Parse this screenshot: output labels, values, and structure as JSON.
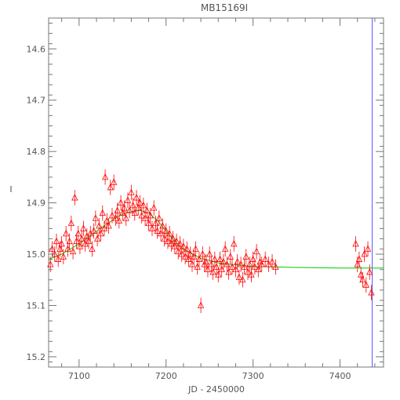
{
  "chart_data": {
    "type": "scatter",
    "title": "MB15169I",
    "xlabel": "JD - 2450000",
    "ylabel": "I",
    "xlim": [
      7065,
      7450
    ],
    "ylim": [
      15.22,
      14.54
    ],
    "y_inverted": true,
    "x_ticks": [
      7100,
      7200,
      7300,
      7400
    ],
    "x_tick_labels": [
      "7100",
      "7200",
      "7300",
      "7400"
    ],
    "y_ticks": [
      14.6,
      14.7,
      14.8,
      14.9,
      15.0,
      15.1,
      15.2
    ],
    "y_tick_labels": [
      "14.6",
      "14.7",
      "14.8",
      "14.9",
      "15.0",
      "15.1",
      "15.2"
    ],
    "grid": false,
    "marker": "triangle",
    "colors": {
      "points": "#ff0000",
      "model": "#00cc00",
      "vline": "#5555ff",
      "axes": "#777777"
    },
    "vertical_line_x": 7437,
    "model": {
      "name": "",
      "x": [
        7065,
        7080,
        7100,
        7120,
        7140,
        7150,
        7160,
        7170,
        7180,
        7190,
        7200,
        7210,
        7220,
        7240,
        7260,
        7280,
        7300,
        7350,
        7400,
        7450
      ],
      "y": [
        15.01,
        15.0,
        14.98,
        14.955,
        14.932,
        14.922,
        14.917,
        14.915,
        14.92,
        14.934,
        14.955,
        14.975,
        14.99,
        15.008,
        15.017,
        15.021,
        15.024,
        15.026,
        15.027,
        15.027
      ]
    },
    "points": [
      {
        "x": 7067,
        "y": 15.02,
        "e": 0.015
      },
      {
        "x": 7069,
        "y": 14.99,
        "e": 0.015
      },
      {
        "x": 7072,
        "y": 15.0,
        "e": 0.015
      },
      {
        "x": 7074,
        "y": 14.975,
        "e": 0.015
      },
      {
        "x": 7076,
        "y": 15.01,
        "e": 0.015
      },
      {
        "x": 7078,
        "y": 14.99,
        "e": 0.015
      },
      {
        "x": 7080,
        "y": 14.98,
        "e": 0.015
      },
      {
        "x": 7082,
        "y": 15.005,
        "e": 0.015
      },
      {
        "x": 7085,
        "y": 14.96,
        "e": 0.015
      },
      {
        "x": 7087,
        "y": 14.99,
        "e": 0.015
      },
      {
        "x": 7089,
        "y": 14.975,
        "e": 0.015
      },
      {
        "x": 7091,
        "y": 14.94,
        "e": 0.015
      },
      {
        "x": 7093,
        "y": 14.995,
        "e": 0.015
      },
      {
        "x": 7095,
        "y": 14.89,
        "e": 0.015
      },
      {
        "x": 7097,
        "y": 14.975,
        "e": 0.015
      },
      {
        "x": 7099,
        "y": 14.96,
        "e": 0.015
      },
      {
        "x": 7101,
        "y": 14.985,
        "e": 0.015
      },
      {
        "x": 7103,
        "y": 14.97,
        "e": 0.015
      },
      {
        "x": 7105,
        "y": 14.95,
        "e": 0.015
      },
      {
        "x": 7107,
        "y": 14.98,
        "e": 0.015
      },
      {
        "x": 7109,
        "y": 14.965,
        "e": 0.015
      },
      {
        "x": 7111,
        "y": 14.975,
        "e": 0.015
      },
      {
        "x": 7113,
        "y": 14.96,
        "e": 0.015
      },
      {
        "x": 7115,
        "y": 14.99,
        "e": 0.015
      },
      {
        "x": 7117,
        "y": 14.955,
        "e": 0.015
      },
      {
        "x": 7119,
        "y": 14.93,
        "e": 0.015
      },
      {
        "x": 7121,
        "y": 14.97,
        "e": 0.015
      },
      {
        "x": 7123,
        "y": 14.945,
        "e": 0.015
      },
      {
        "x": 7125,
        "y": 14.96,
        "e": 0.015
      },
      {
        "x": 7127,
        "y": 14.92,
        "e": 0.015
      },
      {
        "x": 7129,
        "y": 14.95,
        "e": 0.015
      },
      {
        "x": 7130,
        "y": 14.85,
        "e": 0.015
      },
      {
        "x": 7132,
        "y": 14.935,
        "e": 0.015
      },
      {
        "x": 7134,
        "y": 14.945,
        "e": 0.015
      },
      {
        "x": 7136,
        "y": 14.87,
        "e": 0.015
      },
      {
        "x": 7138,
        "y": 14.925,
        "e": 0.015
      },
      {
        "x": 7140,
        "y": 14.86,
        "e": 0.015
      },
      {
        "x": 7142,
        "y": 14.93,
        "e": 0.015
      },
      {
        "x": 7144,
        "y": 14.915,
        "e": 0.015
      },
      {
        "x": 7146,
        "y": 14.935,
        "e": 0.015
      },
      {
        "x": 7148,
        "y": 14.9,
        "e": 0.015
      },
      {
        "x": 7150,
        "y": 14.92,
        "e": 0.015
      },
      {
        "x": 7152,
        "y": 14.91,
        "e": 0.015
      },
      {
        "x": 7154,
        "y": 14.93,
        "e": 0.015
      },
      {
        "x": 7156,
        "y": 14.895,
        "e": 0.015
      },
      {
        "x": 7158,
        "y": 14.915,
        "e": 0.015
      },
      {
        "x": 7160,
        "y": 14.88,
        "e": 0.015
      },
      {
        "x": 7162,
        "y": 14.905,
        "e": 0.015
      },
      {
        "x": 7164,
        "y": 14.92,
        "e": 0.015
      },
      {
        "x": 7166,
        "y": 14.89,
        "e": 0.015
      },
      {
        "x": 7168,
        "y": 14.91,
        "e": 0.015
      },
      {
        "x": 7170,
        "y": 14.9,
        "e": 0.015
      },
      {
        "x": 7172,
        "y": 14.925,
        "e": 0.015
      },
      {
        "x": 7174,
        "y": 14.905,
        "e": 0.015
      },
      {
        "x": 7176,
        "y": 14.93,
        "e": 0.015
      },
      {
        "x": 7178,
        "y": 14.915,
        "e": 0.015
      },
      {
        "x": 7180,
        "y": 14.94,
        "e": 0.015
      },
      {
        "x": 7182,
        "y": 14.925,
        "e": 0.015
      },
      {
        "x": 7184,
        "y": 14.95,
        "e": 0.015
      },
      {
        "x": 7186,
        "y": 14.91,
        "e": 0.015
      },
      {
        "x": 7188,
        "y": 14.94,
        "e": 0.015
      },
      {
        "x": 7190,
        "y": 14.955,
        "e": 0.015
      },
      {
        "x": 7192,
        "y": 14.93,
        "e": 0.015
      },
      {
        "x": 7194,
        "y": 14.96,
        "e": 0.015
      },
      {
        "x": 7196,
        "y": 14.945,
        "e": 0.015
      },
      {
        "x": 7198,
        "y": 14.97,
        "e": 0.015
      },
      {
        "x": 7200,
        "y": 14.955,
        "e": 0.015
      },
      {
        "x": 7202,
        "y": 14.975,
        "e": 0.015
      },
      {
        "x": 7204,
        "y": 14.96,
        "e": 0.015
      },
      {
        "x": 7206,
        "y": 14.98,
        "e": 0.015
      },
      {
        "x": 7208,
        "y": 14.97,
        "e": 0.015
      },
      {
        "x": 7210,
        "y": 14.985,
        "e": 0.015
      },
      {
        "x": 7212,
        "y": 14.975,
        "e": 0.015
      },
      {
        "x": 7214,
        "y": 14.995,
        "e": 0.015
      },
      {
        "x": 7216,
        "y": 14.98,
        "e": 0.015
      },
      {
        "x": 7218,
        "y": 15.0,
        "e": 0.015
      },
      {
        "x": 7220,
        "y": 14.985,
        "e": 0.015
      },
      {
        "x": 7222,
        "y": 15.005,
        "e": 0.015
      },
      {
        "x": 7224,
        "y": 14.99,
        "e": 0.015
      },
      {
        "x": 7226,
        "y": 15.01,
        "e": 0.015
      },
      {
        "x": 7228,
        "y": 15.0,
        "e": 0.015
      },
      {
        "x": 7230,
        "y": 15.02,
        "e": 0.015
      },
      {
        "x": 7232,
        "y": 15.005,
        "e": 0.015
      },
      {
        "x": 7234,
        "y": 14.99,
        "e": 0.015
      },
      {
        "x": 7236,
        "y": 15.025,
        "e": 0.015
      },
      {
        "x": 7238,
        "y": 15.01,
        "e": 0.015
      },
      {
        "x": 7240,
        "y": 15.1,
        "e": 0.015
      },
      {
        "x": 7242,
        "y": 15.0,
        "e": 0.015
      },
      {
        "x": 7244,
        "y": 15.02,
        "e": 0.015
      },
      {
        "x": 7246,
        "y": 15.015,
        "e": 0.015
      },
      {
        "x": 7248,
        "y": 15.03,
        "e": 0.015
      },
      {
        "x": 7250,
        "y": 15.0,
        "e": 0.015
      },
      {
        "x": 7252,
        "y": 15.02,
        "e": 0.015
      },
      {
        "x": 7254,
        "y": 15.035,
        "e": 0.015
      },
      {
        "x": 7256,
        "y": 15.01,
        "e": 0.015
      },
      {
        "x": 7258,
        "y": 15.025,
        "e": 0.015
      },
      {
        "x": 7260,
        "y": 15.04,
        "e": 0.015
      },
      {
        "x": 7262,
        "y": 15.01,
        "e": 0.015
      },
      {
        "x": 7264,
        "y": 15.03,
        "e": 0.015
      },
      {
        "x": 7266,
        "y": 15.015,
        "e": 0.015
      },
      {
        "x": 7268,
        "y": 14.99,
        "e": 0.015
      },
      {
        "x": 7270,
        "y": 15.02,
        "e": 0.015
      },
      {
        "x": 7272,
        "y": 15.035,
        "e": 0.015
      },
      {
        "x": 7274,
        "y": 15.005,
        "e": 0.015
      },
      {
        "x": 7276,
        "y": 15.025,
        "e": 0.015
      },
      {
        "x": 7278,
        "y": 14.98,
        "e": 0.015
      },
      {
        "x": 7280,
        "y": 15.03,
        "e": 0.015
      },
      {
        "x": 7282,
        "y": 15.015,
        "e": 0.015
      },
      {
        "x": 7284,
        "y": 15.045,
        "e": 0.015
      },
      {
        "x": 7286,
        "y": 15.02,
        "e": 0.015
      },
      {
        "x": 7288,
        "y": 15.05,
        "e": 0.015
      },
      {
        "x": 7290,
        "y": 15.025,
        "e": 0.015
      },
      {
        "x": 7292,
        "y": 15.005,
        "e": 0.015
      },
      {
        "x": 7294,
        "y": 15.035,
        "e": 0.015
      },
      {
        "x": 7296,
        "y": 15.02,
        "e": 0.015
      },
      {
        "x": 7298,
        "y": 15.04,
        "e": 0.015
      },
      {
        "x": 7300,
        "y": 15.01,
        "e": 0.015
      },
      {
        "x": 7302,
        "y": 15.025,
        "e": 0.015
      },
      {
        "x": 7304,
        "y": 14.995,
        "e": 0.015
      },
      {
        "x": 7306,
        "y": 15.03,
        "e": 0.015
      },
      {
        "x": 7308,
        "y": 15.015,
        "e": 0.015
      },
      {
        "x": 7310,
        "y": 15.02,
        "e": 0.015
      },
      {
        "x": 7314,
        "y": 15.01,
        "e": 0.015
      },
      {
        "x": 7318,
        "y": 15.02,
        "e": 0.015
      },
      {
        "x": 7322,
        "y": 15.015,
        "e": 0.015
      },
      {
        "x": 7326,
        "y": 15.025,
        "e": 0.015
      },
      {
        "x": 7418,
        "y": 14.98,
        "e": 0.015
      },
      {
        "x": 7420,
        "y": 15.02,
        "e": 0.015
      },
      {
        "x": 7422,
        "y": 15.01,
        "e": 0.015
      },
      {
        "x": 7424,
        "y": 15.04,
        "e": 0.015
      },
      {
        "x": 7426,
        "y": 15.05,
        "e": 0.015
      },
      {
        "x": 7428,
        "y": 15.0,
        "e": 0.015
      },
      {
        "x": 7430,
        "y": 15.06,
        "e": 0.015
      },
      {
        "x": 7432,
        "y": 14.99,
        "e": 0.015
      },
      {
        "x": 7434,
        "y": 15.035,
        "e": 0.015
      },
      {
        "x": 7436,
        "y": 15.075,
        "e": 0.015
      }
    ]
  }
}
